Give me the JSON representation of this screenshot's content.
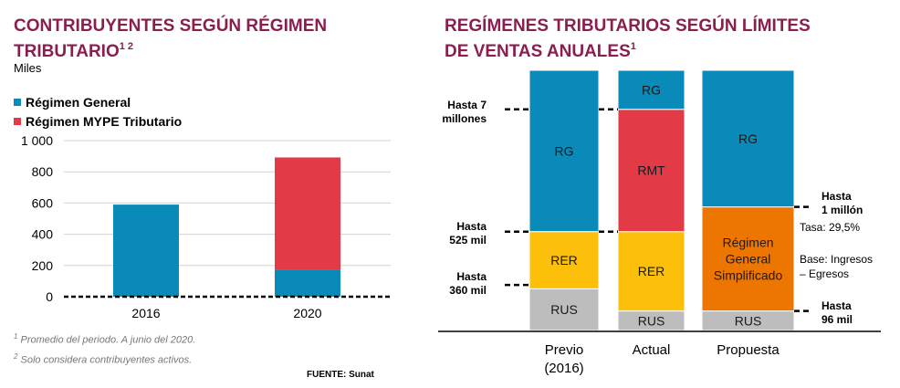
{
  "left_chart": {
    "title_line1": "CONTRIBUYENTES SEGÚN RÉGIMEN",
    "title_line2": "TRIBUTARIO",
    "title_sup": "1 2",
    "units": "Miles",
    "legend": [
      {
        "label": "Régimen General",
        "color": "#0a8ab8"
      },
      {
        "label": "Régimen MYPE Tributario",
        "color": "#e23a46"
      }
    ],
    "note1_sup": "1",
    "note1": " Promedio del periodo. A junio del 2020.",
    "note2_sup": "2",
    "note2": " Solo considera contribuyentes activos.",
    "source": "FUENTE: Sunat"
  },
  "right_chart": {
    "title_line1": "REGÍMENES TRIBUTARIOS SEGÚN LÍMITES",
    "title_line2": "DE VENTAS ANUALES",
    "title_sup": "1",
    "columns": [
      "Previo\n(2016)",
      "Actual",
      "Propuesta"
    ],
    "threshold_labels": [
      "Hasta 7\nmillones",
      "Hasta\n525 mil",
      "Hasta\n360 mil",
      "Hasta\n1 millón",
      "Hasta\n96 mil"
    ],
    "tasa_note": "Tasa: 29,5%",
    "base_note": "Base: Ingresos\n– Egresos"
  },
  "chart_data": [
    {
      "type": "bar",
      "stacked": true,
      "title": "CONTRIBUYENTES SEGÚN RÉGIMEN TRIBUTARIO",
      "ylabel": "Miles",
      "categories": [
        "2016",
        "2020"
      ],
      "series": [
        {
          "name": "Régimen General",
          "values": [
            590,
            170
          ],
          "color": "#0a8ab8"
        },
        {
          "name": "Régimen MYPE Tributario",
          "values": [
            0,
            722
          ],
          "color": "#e23a46"
        }
      ],
      "ylim": [
        0,
        1000
      ],
      "yticks": [
        0,
        200,
        400,
        600,
        800,
        1000
      ],
      "ytick_labels": [
        "0",
        "200",
        "400",
        "600",
        "800",
        "1 000"
      ],
      "grid": true,
      "legend_position": "top-left"
    },
    {
      "type": "bar",
      "stacked": true,
      "title": "REGÍMENES TRIBUTARIOS SEGÚN LÍMITES DE VENTAS ANUALES",
      "categories": [
        "Previo\n(2016)",
        "Actual",
        "Propuesta"
      ],
      "stacks": [
        [
          {
            "label": "RUS",
            "upper_fraction": 0.16,
            "color": "#bdbdbd"
          },
          {
            "label": "RER",
            "upper_fraction": 0.38,
            "color": "#fcbf0a"
          },
          {
            "label": "RG",
            "upper_fraction": 1.0,
            "color": "#0a8ab8"
          }
        ],
        [
          {
            "label": "RUS",
            "upper_fraction": 0.075,
            "color": "#bdbdbd"
          },
          {
            "label": "RER",
            "upper_fraction": 0.38,
            "color": "#fcbf0a"
          },
          {
            "label": "RMT",
            "upper_fraction": 0.85,
            "color": "#e23a46"
          },
          {
            "label": "RG",
            "upper_fraction": 1.0,
            "color": "#0a8ab8"
          }
        ],
        [
          {
            "label": "RUS",
            "upper_fraction": 0.075,
            "color": "#bdbdbd"
          },
          {
            "label": "Régimen\nGeneral\nSimplificado",
            "upper_fraction": 0.475,
            "color": "#ec7600"
          },
          {
            "label": "RG",
            "upper_fraction": 1.0,
            "color": "#0a8ab8"
          }
        ]
      ],
      "legend_position": "none"
    }
  ]
}
